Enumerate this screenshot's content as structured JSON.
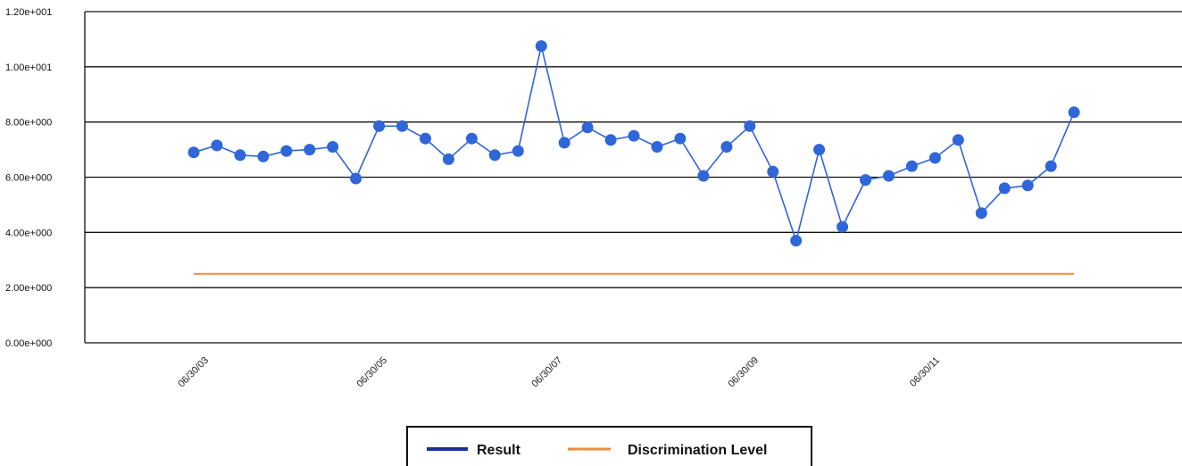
{
  "chart_data": {
    "type": "line",
    "title": "",
    "xlabel": "",
    "ylabel": "",
    "ylim": [
      0,
      12
    ],
    "yticks": [
      0,
      2,
      4,
      6,
      8,
      10,
      12
    ],
    "ytick_labels": [
      "0.00e+000",
      "2.00e+000",
      "4.00e+000",
      "6.00e+000",
      "8.00e+000",
      "1.00e+001",
      "1.20e+001"
    ],
    "xtick_labels": [
      "06/30/03",
      "06/30/05",
      "06/30/07",
      "06/30/09",
      "06/30/11"
    ],
    "grid": "horizontal",
    "legend_position": "bottom-center",
    "series": [
      {
        "name": "Result",
        "legend_color": "#1f2f8f",
        "color": "#2f66d8",
        "markers": true,
        "values": [
          6.9,
          7.15,
          6.8,
          6.75,
          6.95,
          7.0,
          7.1,
          5.95,
          7.85,
          7.85,
          7.4,
          6.65,
          7.4,
          6.8,
          6.95,
          10.75,
          7.25,
          7.8,
          7.35,
          7.5,
          7.1,
          7.4,
          6.05,
          7.1,
          7.85,
          6.2,
          3.7,
          7.0,
          4.2,
          5.9,
          6.05,
          6.4,
          6.7,
          7.35,
          4.7,
          5.6,
          5.7,
          6.4,
          8.35
        ]
      },
      {
        "name": "Discrimination Level",
        "color": "#f08a3c",
        "markers": false,
        "values": [
          2.5,
          2.5,
          2.5,
          2.5,
          2.5,
          2.5,
          2.5,
          2.5,
          2.5,
          2.5,
          2.5,
          2.5,
          2.5,
          2.5,
          2.5,
          2.5,
          2.5,
          2.5,
          2.5,
          2.5,
          2.5,
          2.5,
          2.5,
          2.5,
          2.5,
          2.5,
          2.5,
          2.5,
          2.5,
          2.5,
          2.5,
          2.5,
          2.5,
          2.5,
          2.5,
          2.5,
          2.5,
          2.5,
          2.5
        ]
      }
    ]
  }
}
